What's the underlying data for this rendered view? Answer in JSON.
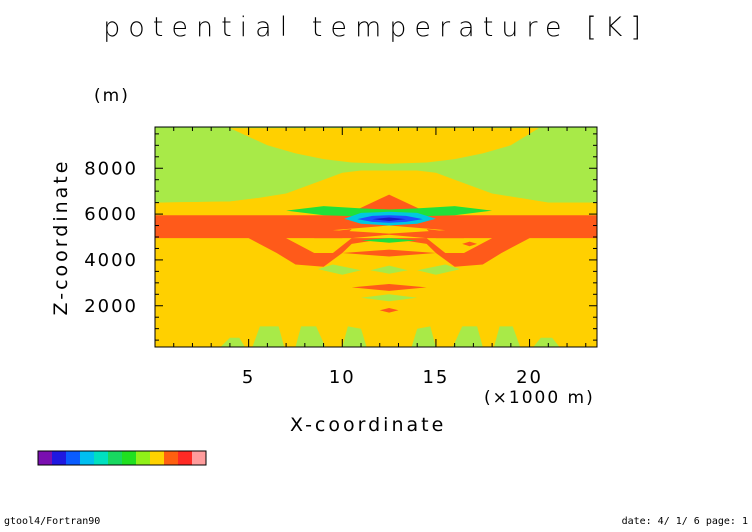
{
  "title": "potential temperature [K]",
  "footer": {
    "left": "gtool4/Fortran90",
    "right": "date: 4/ 1/ 6 page: 1"
  },
  "chart_data": {
    "type": "heatmap",
    "title": "potential temperature [K]",
    "xlabel": "X-coordinate",
    "ylabel": "Z-coordinate",
    "x_unit_label": "(×1000 m)",
    "y_unit_label": "(m)",
    "xlim": [
      0,
      23.6
    ],
    "ylim": [
      200,
      9800
    ],
    "x_ticks": [
      5,
      10,
      15,
      20
    ],
    "y_ticks": [
      2000,
      4000,
      6000,
      8000
    ],
    "grid": false,
    "colorbar_colors": [
      "#7a0fb0",
      "#1f18e0",
      "#0a5cff",
      "#00bff0",
      "#00e0c0",
      "#18d860",
      "#20e020",
      "#90f018",
      "#ffd200",
      "#ff6010",
      "#ff2a24",
      "#ff9c9c"
    ],
    "regions": [
      {
        "name": "upper-layer",
        "color": "#a8ea48",
        "points": [
          [
            0,
            9800
          ],
          [
            23.6,
            9800
          ],
          [
            23.6,
            6500
          ],
          [
            21,
            6500
          ],
          [
            19.5,
            6700
          ],
          [
            18,
            6900
          ],
          [
            17,
            7200
          ],
          [
            16,
            7500
          ],
          [
            15,
            7800
          ],
          [
            14,
            7900
          ],
          [
            12.5,
            7900
          ],
          [
            11,
            7900
          ],
          [
            10,
            7800
          ],
          [
            9,
            7500
          ],
          [
            8,
            7200
          ],
          [
            7,
            6900
          ],
          [
            5.5,
            6700
          ],
          [
            4,
            6550
          ],
          [
            0,
            6500
          ]
        ]
      },
      {
        "name": "top-boundary",
        "color": "#8ee24a",
        "points": [
          [
            0,
            9800
          ],
          [
            23.6,
            9800
          ],
          [
            23.6,
            9750
          ],
          [
            0,
            9750
          ]
        ]
      },
      {
        "name": "upper-yellow-dome",
        "color": "#ffd000",
        "points": [
          [
            4,
            9750
          ],
          [
            6,
            9000
          ],
          [
            7.5,
            8650
          ],
          [
            9,
            8400
          ],
          [
            10.5,
            8250
          ],
          [
            12.5,
            8200
          ],
          [
            14.5,
            8250
          ],
          [
            16,
            8400
          ],
          [
            17.5,
            8650
          ],
          [
            19,
            9000
          ],
          [
            20.5,
            9750
          ]
        ]
      },
      {
        "name": "yellow-band-1",
        "color": "#ffd000",
        "points": [
          [
            0,
            6500
          ],
          [
            4,
            6550
          ],
          [
            5.5,
            6700
          ],
          [
            7,
            6700
          ],
          [
            9,
            6450
          ],
          [
            11,
            6400
          ],
          [
            14,
            6400
          ],
          [
            16,
            6450
          ],
          [
            18,
            6700
          ],
          [
            19.5,
            6700
          ],
          [
            21,
            6500
          ],
          [
            23.6,
            6500
          ],
          [
            23.6,
            6100
          ],
          [
            0,
            6100
          ]
        ]
      },
      {
        "name": "red-layer",
        "color": "#ff5a1a",
        "points": [
          [
            0,
            5950
          ],
          [
            23.6,
            5950
          ],
          [
            23.6,
            4950
          ],
          [
            20,
            4950
          ],
          [
            18.5,
            4300
          ],
          [
            17.5,
            3800
          ],
          [
            16,
            3700
          ],
          [
            15,
            4300
          ],
          [
            14.5,
            4700
          ],
          [
            12.5,
            4950
          ],
          [
            10.5,
            4700
          ],
          [
            10,
            4300
          ],
          [
            9,
            3700
          ],
          [
            7.5,
            3800
          ],
          [
            6.5,
            4300
          ],
          [
            5,
            4950
          ],
          [
            0,
            4950
          ]
        ]
      },
      {
        "name": "red-layer-inner",
        "color": "#ffd000",
        "points": [
          [
            7,
            4950
          ],
          [
            8.5,
            4300
          ],
          [
            9.5,
            4300
          ],
          [
            10.5,
            4950
          ],
          [
            12.5,
            5100
          ],
          [
            14.5,
            4950
          ],
          [
            15.5,
            4300
          ],
          [
            16.5,
            4300
          ],
          [
            18,
            4950
          ]
        ]
      },
      {
        "name": "peak-red",
        "color": "#ff5a1a",
        "points": [
          [
            10.8,
            6200
          ],
          [
            12.5,
            6850
          ],
          [
            14.2,
            6200
          ],
          [
            12.5,
            6000
          ]
        ]
      },
      {
        "name": "green-blob",
        "color": "#21e03a",
        "points": [
          [
            7,
            6150
          ],
          [
            9,
            6350
          ],
          [
            11,
            6250
          ],
          [
            12.5,
            6200
          ],
          [
            14,
            6250
          ],
          [
            16,
            6350
          ],
          [
            18,
            6150
          ],
          [
            16,
            5950
          ],
          [
            14,
            5900
          ],
          [
            12.5,
            5900
          ],
          [
            11,
            5900
          ],
          [
            9,
            5950
          ]
        ]
      },
      {
        "name": "cyan-ring",
        "color": "#00c8e0",
        "points": [
          [
            10.1,
            5800
          ],
          [
            11,
            6050
          ],
          [
            12.5,
            6100
          ],
          [
            14,
            6050
          ],
          [
            15,
            5800
          ],
          [
            14,
            5580
          ],
          [
            12.5,
            5500
          ],
          [
            11,
            5580
          ]
        ]
      },
      {
        "name": "blue-core",
        "color": "#1e50ff",
        "points": [
          [
            10.8,
            5780
          ],
          [
            11.6,
            5920
          ],
          [
            12.5,
            5950
          ],
          [
            13.4,
            5920
          ],
          [
            14.3,
            5780
          ],
          [
            13.4,
            5660
          ],
          [
            12.5,
            5620
          ],
          [
            11.6,
            5660
          ]
        ]
      },
      {
        "name": "navy-core",
        "color": "#1a18c8",
        "points": [
          [
            11.6,
            5780
          ],
          [
            12.5,
            5850
          ],
          [
            13.4,
            5780
          ],
          [
            12.5,
            5700
          ]
        ]
      },
      {
        "name": "sub-peak",
        "color": "#ffd000",
        "points": [
          [
            9.5,
            5300
          ],
          [
            12.5,
            5500
          ],
          [
            15.5,
            5300
          ],
          [
            12.5,
            5150
          ]
        ]
      },
      {
        "name": "green-dash-1",
        "color": "#1fe03a",
        "points": [
          [
            11,
            4850
          ],
          [
            12.5,
            4950
          ],
          [
            14,
            4850
          ],
          [
            12.5,
            4750
          ]
        ]
      },
      {
        "name": "red-dash-1",
        "color": "#ff5a1a",
        "points": [
          [
            9,
            5200
          ],
          [
            10.5,
            5350
          ],
          [
            10,
            4950
          ],
          [
            8.5,
            4950
          ]
        ]
      },
      {
        "name": "red-dash-2",
        "color": "#ff5a1a",
        "points": [
          [
            14.5,
            5350
          ],
          [
            16,
            5200
          ],
          [
            16.5,
            4950
          ],
          [
            15,
            4950
          ]
        ]
      },
      {
        "name": "red-dot",
        "color": "#ff5a1a",
        "points": [
          [
            16.4,
            4700
          ],
          [
            16.8,
            4800
          ],
          [
            17.2,
            4700
          ],
          [
            16.8,
            4600
          ]
        ]
      },
      {
        "name": "red-band-2",
        "color": "#ff5a1a",
        "points": [
          [
            10,
            4300
          ],
          [
            12.5,
            4450
          ],
          [
            15,
            4300
          ],
          [
            12.5,
            4150
          ]
        ]
      },
      {
        "name": "green-band-2",
        "color": "#a8ea48",
        "points": [
          [
            9.5,
            3800
          ],
          [
            11,
            3550
          ],
          [
            10,
            3350
          ],
          [
            8.7,
            3600
          ]
        ]
      },
      {
        "name": "green-band-3",
        "color": "#a8ea48",
        "points": [
          [
            14,
            3550
          ],
          [
            15.5,
            3800
          ],
          [
            16.3,
            3600
          ],
          [
            15,
            3350
          ]
        ]
      },
      {
        "name": "green-band-4",
        "color": "#a8ea48",
        "points": [
          [
            11.5,
            3550
          ],
          [
            12.5,
            3750
          ],
          [
            13.5,
            3550
          ],
          [
            12.5,
            3400
          ]
        ]
      },
      {
        "name": "red-band-3",
        "color": "#ff5a1a",
        "points": [
          [
            10.5,
            2800
          ],
          [
            12.5,
            2950
          ],
          [
            14.5,
            2800
          ],
          [
            12.5,
            2650
          ]
        ]
      },
      {
        "name": "green-band-5",
        "color": "#a8ea48",
        "points": [
          [
            11,
            2350
          ],
          [
            12.5,
            2500
          ],
          [
            14,
            2350
          ],
          [
            12.5,
            2200
          ]
        ]
      },
      {
        "name": "red-band-4",
        "color": "#ff5a1a",
        "points": [
          [
            12,
            1800
          ],
          [
            12.5,
            1900
          ],
          [
            13,
            1800
          ],
          [
            12.5,
            1700
          ]
        ]
      },
      {
        "name": "green-foot-1",
        "color": "#a8ea48",
        "points": [
          [
            3.5,
            200
          ],
          [
            4,
            600
          ],
          [
            4.5,
            600
          ],
          [
            4.8,
            200
          ]
        ]
      },
      {
        "name": "green-foot-2",
        "color": "#a8ea48",
        "points": [
          [
            5.2,
            200
          ],
          [
            5.6,
            1100
          ],
          [
            6.6,
            1100
          ],
          [
            6.9,
            200
          ]
        ]
      },
      {
        "name": "green-foot-3",
        "color": "#a8ea48",
        "points": [
          [
            7.5,
            200
          ],
          [
            7.8,
            1100
          ],
          [
            8.6,
            1100
          ],
          [
            9.1,
            200
          ]
        ]
      },
      {
        "name": "green-foot-4",
        "color": "#a8ea48",
        "points": [
          [
            10,
            200
          ],
          [
            10.3,
            1100
          ],
          [
            11,
            1000
          ],
          [
            11.3,
            200
          ]
        ]
      },
      {
        "name": "green-foot-5",
        "color": "#a8ea48",
        "points": [
          [
            13.7,
            200
          ],
          [
            14,
            1000
          ],
          [
            14.7,
            1100
          ],
          [
            15,
            200
          ]
        ]
      },
      {
        "name": "green-foot-6",
        "color": "#a8ea48",
        "points": [
          [
            15.9,
            200
          ],
          [
            16.4,
            1100
          ],
          [
            17.2,
            1100
          ],
          [
            17.5,
            200
          ]
        ]
      },
      {
        "name": "green-foot-7",
        "color": "#a8ea48",
        "points": [
          [
            18.1,
            200
          ],
          [
            18.4,
            1100
          ],
          [
            19.1,
            1100
          ],
          [
            19.5,
            200
          ]
        ]
      },
      {
        "name": "green-foot-8",
        "color": "#a8ea48",
        "points": [
          [
            20.2,
            200
          ],
          [
            20.6,
            600
          ],
          [
            21.2,
            600
          ],
          [
            21.6,
            200
          ]
        ]
      }
    ]
  }
}
